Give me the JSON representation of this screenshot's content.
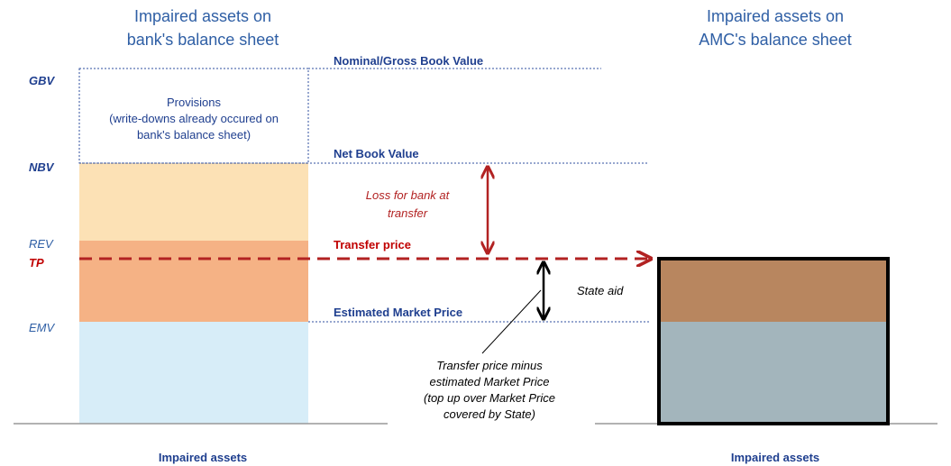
{
  "left_title": [
    "Impaired assets on",
    "bank's balance sheet"
  ],
  "right_title": [
    "Impaired assets on",
    "AMC's balance sheet"
  ],
  "levels": {
    "gbv": "GBV",
    "nbv": "NBV",
    "rev": "REV",
    "tp": "TP",
    "emv": "EMV"
  },
  "provisions": [
    "Provisions",
    "(write-downs already occured on",
    "bank's balance sheet)"
  ],
  "lines": {
    "gross": "Nominal/Gross Book Value",
    "net": "Net Book Value",
    "transfer": "Transfer price",
    "market": "Estimated Market Price"
  },
  "loss": [
    "Loss for bank at",
    "transfer"
  ],
  "state_aid": "State aid",
  "note": [
    "Transfer price minus",
    "estimated Market Price",
    "(top up over Market Price",
    "covered by State)"
  ],
  "left_footer": "Impaired assets",
  "right_footer": "Impaired assets"
}
